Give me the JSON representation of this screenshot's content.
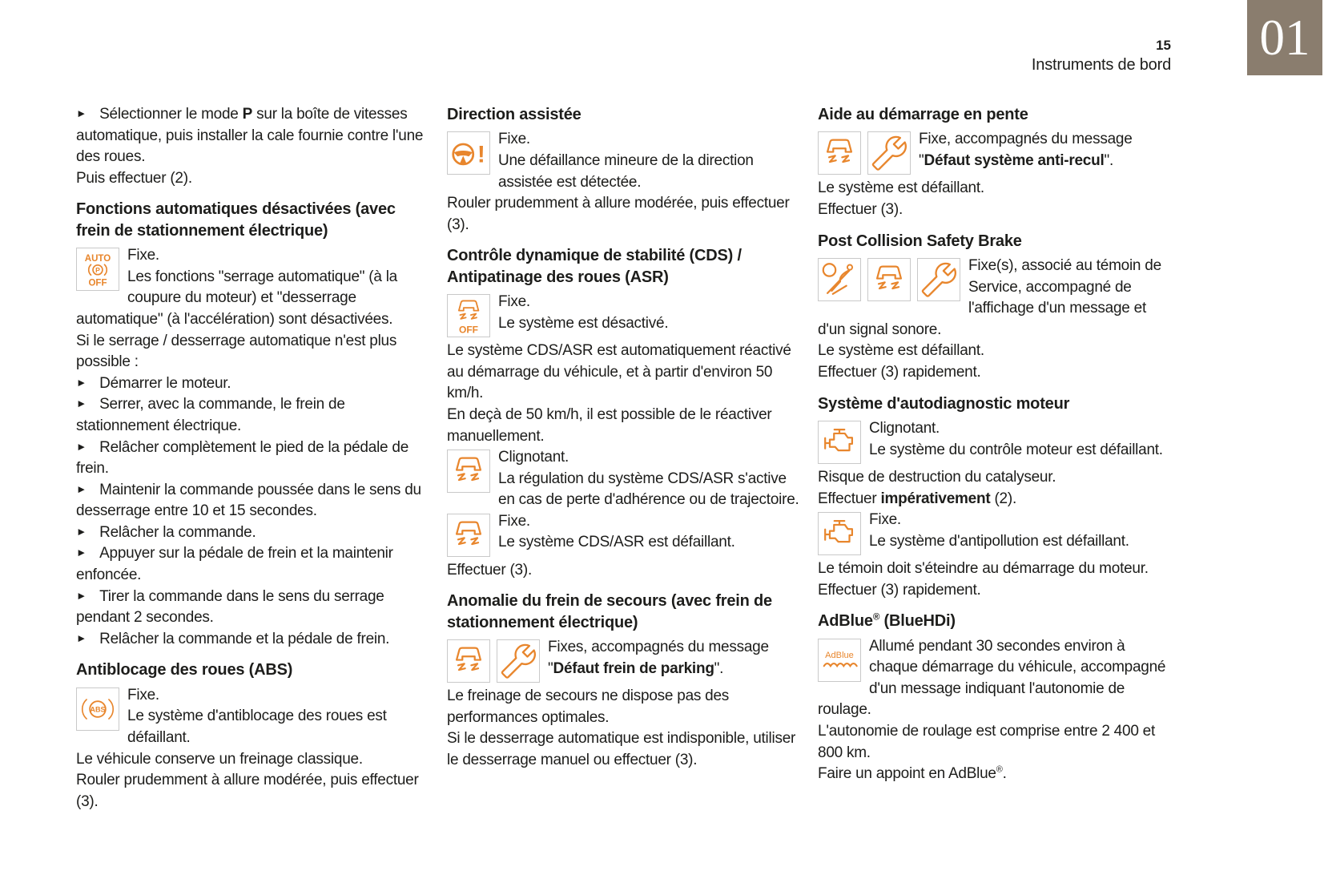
{
  "header": {
    "page_number": "15",
    "section_title": "Instruments de bord",
    "chapter_number": "01"
  },
  "colors": {
    "accent_orange": "#e8862d",
    "badge_taupe": "#8a7d6e",
    "text_dark": "#1d1d1b"
  },
  "glyphs": {
    "bullet_marker": "►"
  },
  "columns": [
    {
      "blocks": [
        {
          "type": "bullet",
          "segments": [
            {
              "text": "Sélectionner le mode "
            },
            {
              "text": "P",
              "bold": true
            },
            {
              "text": " sur la boîte de vitesses automatique, puis installer la cale fournie contre l'une des roues."
            }
          ]
        },
        {
          "type": "para",
          "text": "Puis effectuer (2)."
        },
        {
          "type": "heading",
          "text": "Fonctions automatiques désactivées (avec frein de stationnement électrique)"
        },
        {
          "type": "indicator",
          "icons": [
            "auto-parking-brake-off"
          ],
          "paras": [
            "Fixe.",
            "Les fonctions \"serrage automatique\" (à la coupure du moteur) et \"desserrage automatique\" (à l'accélération) sont désactivées."
          ]
        },
        {
          "type": "para",
          "text": "Si le serrage / desserrage automatique n'est plus possible :"
        },
        {
          "type": "bullet",
          "text": "Démarrer le moteur."
        },
        {
          "type": "bullet",
          "text": "Serrer, avec la commande, le frein de stationnement électrique."
        },
        {
          "type": "bullet",
          "text": "Relâcher complètement le pied de la pédale de frein."
        },
        {
          "type": "bullet",
          "text": "Maintenir la commande poussée dans le sens du desserrage entre 10 et 15 secondes."
        },
        {
          "type": "bullet",
          "text": "Relâcher la commande."
        },
        {
          "type": "bullet",
          "text": "Appuyer sur la pédale de frein et la maintenir enfoncée."
        },
        {
          "type": "bullet",
          "text": "Tirer la commande dans le sens du serrage pendant 2 secondes."
        },
        {
          "type": "bullet",
          "text": "Relâcher la commande et la pédale de frein."
        },
        {
          "type": "heading",
          "text": "Antiblocage des roues (ABS)"
        },
        {
          "type": "indicator",
          "icons": [
            "abs"
          ],
          "paras": [
            "Fixe.",
            "Le système d'antiblocage des roues est défaillant."
          ]
        },
        {
          "type": "para",
          "text": "Le véhicule conserve un freinage classique."
        },
        {
          "type": "para",
          "text": "Rouler prudemment à allure modérée, puis effectuer (3)."
        }
      ]
    },
    {
      "blocks": [
        {
          "type": "heading",
          "text": "Direction assistée"
        },
        {
          "type": "indicator",
          "icons": [
            "power-steering"
          ],
          "paras": [
            "Fixe.",
            "Une défaillance mineure de la direction assistée est détectée."
          ]
        },
        {
          "type": "para",
          "text": "Rouler prudemment à allure modérée, puis effectuer (3)."
        },
        {
          "type": "heading",
          "text": "Contrôle dynamique de stabilité (CDS) / Antipatinage des roues (ASR)"
        },
        {
          "type": "indicator",
          "icons": [
            "esp-off"
          ],
          "paras": [
            "Fixe.",
            "Le système est désactivé."
          ]
        },
        {
          "type": "para",
          "text": "Le système CDS/ASR est automatiquement réactivé au démarrage du véhicule, et à partir d'environ 50 km/h."
        },
        {
          "type": "para",
          "text": "En deçà de 50 km/h, il est possible de le réactiver manuellement."
        },
        {
          "type": "indicator",
          "icons": [
            "esp"
          ],
          "paras": [
            "Clignotant.",
            "La régulation du système CDS/ASR s'active en cas de perte d'adhérence ou de trajectoire."
          ]
        },
        {
          "type": "indicator",
          "icons": [
            "esp"
          ],
          "paras": [
            "Fixe.",
            "Le système CDS/ASR est défaillant."
          ]
        },
        {
          "type": "para",
          "text": "Effectuer (3)."
        },
        {
          "type": "heading",
          "text": "Anomalie du frein de secours (avec frein de stationnement électrique)"
        },
        {
          "type": "indicator",
          "icons": [
            "esp",
            "service-wrench"
          ],
          "paras": [
            "Fixes, accompagnés du message",
            [
              {
                "text": "\""
              },
              {
                "text": "Défaut frein de parking",
                "bold": true
              },
              {
                "text": "\"."
              }
            ]
          ]
        },
        {
          "type": "para",
          "text": "Le freinage de secours ne dispose pas des performances optimales."
        },
        {
          "type": "para",
          "text": "Si le desserrage automatique est indisponible, utiliser le desserrage manuel ou effectuer (3)."
        }
      ]
    },
    {
      "blocks": [
        {
          "type": "heading",
          "text": "Aide au démarrage en pente"
        },
        {
          "type": "indicator",
          "icons": [
            "esp",
            "service-wrench"
          ],
          "paras": [
            "Fixe, accompagnés du message",
            [
              {
                "text": "\""
              },
              {
                "text": "Défaut système anti-recul",
                "bold": true
              },
              {
                "text": "\"."
              }
            ]
          ]
        },
        {
          "type": "para",
          "text": "Le système est défaillant."
        },
        {
          "type": "para",
          "text": "Effectuer (3)."
        },
        {
          "type": "heading",
          "text": "Post Collision Safety Brake"
        },
        {
          "type": "indicator",
          "icons": [
            "seatbelt",
            "esp",
            "service-wrench"
          ],
          "paras": [
            "Fixe(s), associé au témoin de Service, accompagné de l'affichage d'un message et d'un signal sonore."
          ]
        },
        {
          "type": "para",
          "text": "Le système est défaillant."
        },
        {
          "type": "para",
          "text": "Effectuer (3) rapidement."
        },
        {
          "type": "heading",
          "text": "Système d'autodiagnostic moteur"
        },
        {
          "type": "indicator",
          "icons": [
            "engine"
          ],
          "paras": [
            "Clignotant.",
            "Le système du contrôle moteur est défaillant."
          ]
        },
        {
          "type": "para",
          "text": "Risque de destruction du catalyseur."
        },
        {
          "type": "para",
          "segments": [
            {
              "text": "Effectuer "
            },
            {
              "text": "impérativement",
              "bold": true
            },
            {
              "text": " (2)."
            }
          ]
        },
        {
          "type": "indicator",
          "icons": [
            "engine"
          ],
          "paras": [
            "Fixe.",
            "Le système d'antipollution est défaillant."
          ]
        },
        {
          "type": "para",
          "text": "Le témoin doit s'éteindre au démarrage du moteur."
        },
        {
          "type": "para",
          "text": "Effectuer (3) rapidement."
        },
        {
          "type": "heading",
          "segments": [
            {
              "text": "AdBlue"
            },
            {
              "text": "®",
              "sup": true
            },
            {
              "text": " (BlueHDi)"
            }
          ]
        },
        {
          "type": "indicator",
          "icons": [
            "adblue"
          ],
          "paras": [
            "Allumé pendant 30 secondes environ à chaque démarrage du véhicule, accompagné d'un message indiquant l'autonomie de roulage."
          ]
        },
        {
          "type": "para",
          "text": "L'autonomie de roulage est comprise entre 2 400 et 800 km."
        },
        {
          "type": "para",
          "segments": [
            {
              "text": "Faire un appoint en AdBlue"
            },
            {
              "text": "®",
              "sup": true
            },
            {
              "text": "."
            }
          ]
        }
      ]
    }
  ]
}
